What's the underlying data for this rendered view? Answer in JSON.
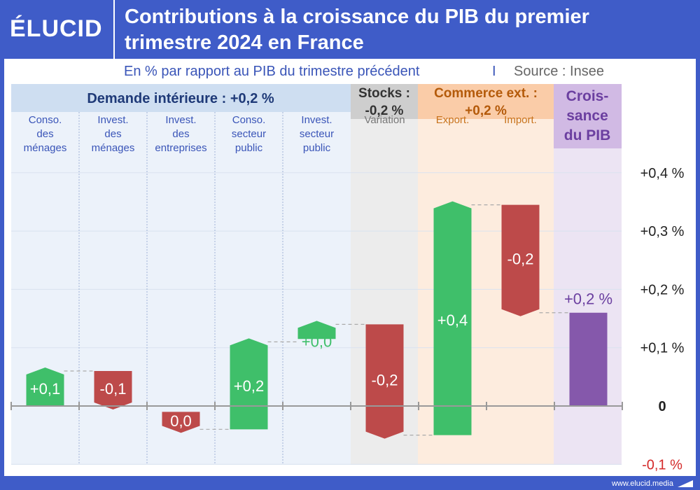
{
  "header": {
    "logo_text": "ÉLUCID",
    "title_line1": "Contributions à la croissance du PIB du premier",
    "title_line2": "trimestre 2024 en France"
  },
  "subtitle": "En % par rapport au PIB du trimestre précédent",
  "source_separator": "I",
  "source": "Source : Insee",
  "footer": {
    "url": "www.elucid.media"
  },
  "colors": {
    "background": "#3f5cc8",
    "positive": "#3fbf6a",
    "negative": "#bd4a4a",
    "total": "#8558ab",
    "group_domestic": "#dde8f5",
    "group_stocks": "#dcdcdc",
    "group_trade": "#fbdcc2",
    "group_gdp": "#ddcdea"
  },
  "groups": [
    {
      "id": "domestic",
      "label": "Demande intérieure : +0,2 %",
      "color": "#1f3a78"
    },
    {
      "id": "stocks",
      "label_line1": "Stocks :",
      "label_line2": "-0,2 %",
      "color": "#333333"
    },
    {
      "id": "trade",
      "label_line1": "Commerce ext. :",
      "label_line2": "+0,2 %",
      "color": "#b45a0a"
    },
    {
      "id": "gdp",
      "label_line1": "Crois-",
      "label_line2": "sance",
      "label_line3": "du PIB",
      "color": "#6b3fa0"
    }
  ],
  "chart_data": {
    "type": "bar",
    "subtype": "waterfall",
    "title": "Contributions à la croissance du PIB du premier trimestre 2024 en France",
    "subtitle": "En % par rapport au PIB du trimestre précédent",
    "ylim": [
      -0.1,
      0.4
    ],
    "y_ticks": [
      {
        "value": 0.4,
        "label": "+0,4 %"
      },
      {
        "value": 0.3,
        "label": "+0,3 %"
      },
      {
        "value": 0.2,
        "label": "+0,2 %"
      },
      {
        "value": 0.1,
        "label": "+0,1 %"
      },
      {
        "value": 0.0,
        "label": "0"
      },
      {
        "value": -0.1,
        "label": "-0,1 %"
      }
    ],
    "grid": true,
    "categories": [
      {
        "label_lines": [
          "Conso.",
          "des",
          "ménages"
        ],
        "start": 0.0,
        "end": 0.06,
        "label": "+0,1",
        "sign": "pos",
        "group": "domestic"
      },
      {
        "label_lines": [
          "Invest.",
          "des",
          "ménages"
        ],
        "start": 0.06,
        "end": 0.0,
        "label": "-0,1",
        "sign": "neg",
        "group": "domestic"
      },
      {
        "label_lines": [
          "Invest.",
          "des",
          "entreprises"
        ],
        "start": -0.01,
        "end": -0.04,
        "label": "0,0",
        "sign": "neg",
        "group": "domestic"
      },
      {
        "label_lines": [
          "Conso.",
          "secteur",
          "public"
        ],
        "start": -0.04,
        "end": 0.11,
        "label": "+0,2",
        "sign": "pos",
        "group": "domestic"
      },
      {
        "label_lines": [
          "Invest.",
          "secteur",
          "public"
        ],
        "start": 0.115,
        "end": 0.14,
        "label": "+0,0",
        "sign": "pos",
        "group": "domestic"
      },
      {
        "label_lines": [
          "Variation"
        ],
        "start": 0.14,
        "end": -0.05,
        "label": "-0,2",
        "sign": "neg",
        "group": "stocks"
      },
      {
        "label_lines": [
          "Export."
        ],
        "start": -0.05,
        "end": 0.345,
        "label": "+0,4",
        "sign": "pos",
        "group": "trade"
      },
      {
        "label_lines": [
          "Import."
        ],
        "start": 0.345,
        "end": 0.16,
        "label": "-0,2",
        "sign": "neg",
        "group": "trade"
      },
      {
        "label_lines": [],
        "start": 0.0,
        "end": 0.16,
        "label": "+0,2 %",
        "sign": "total",
        "group": "gdp"
      }
    ]
  }
}
